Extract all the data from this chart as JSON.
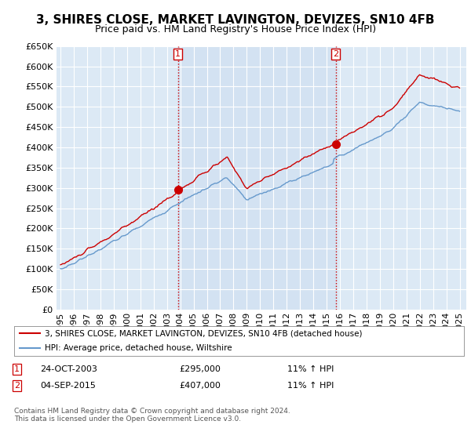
{
  "title": "3, SHIRES CLOSE, MARKET LAVINGTON, DEVIZES, SN10 4FB",
  "subtitle": "Price paid vs. HM Land Registry's House Price Index (HPI)",
  "ylim": [
    0,
    650000
  ],
  "yticks": [
    0,
    50000,
    100000,
    150000,
    200000,
    250000,
    300000,
    350000,
    400000,
    450000,
    500000,
    550000,
    600000,
    650000
  ],
  "xlim_start": 1994.7,
  "xlim_end": 2025.5,
  "sale1_x": 2003.82,
  "sale1_y": 295000,
  "sale1_label": "1",
  "sale2_x": 2015.68,
  "sale2_y": 407000,
  "sale2_label": "2",
  "line_color_property": "#cc0000",
  "line_color_hpi": "#6699cc",
  "line_color_hpi_legend": "#6699cc",
  "annotation1_date": "24-OCT-2003",
  "annotation1_price": "£295,000",
  "annotation1_hpi": "11% ↑ HPI",
  "annotation2_date": "04-SEP-2015",
  "annotation2_price": "£407,000",
  "annotation2_hpi": "11% ↑ HPI",
  "legend_label1": "3, SHIRES CLOSE, MARKET LAVINGTON, DEVIZES, SN10 4FB (detached house)",
  "legend_label2": "HPI: Average price, detached house, Wiltshire",
  "footer": "Contains HM Land Registry data © Crown copyright and database right 2024.\nThis data is licensed under the Open Government Licence v3.0.",
  "background_color": "#ffffff",
  "plot_bg_color": "#dce9f5",
  "grid_color": "#ffffff",
  "title_fontsize": 11,
  "subtitle_fontsize": 9,
  "tick_fontsize": 8,
  "x_years": [
    1995,
    1996,
    1997,
    1998,
    1999,
    2000,
    2001,
    2002,
    2003,
    2004,
    2005,
    2006,
    2007,
    2008,
    2009,
    2010,
    2011,
    2012,
    2013,
    2014,
    2015,
    2016,
    2017,
    2018,
    2019,
    2020,
    2021,
    2022,
    2023,
    2024,
    2025
  ]
}
